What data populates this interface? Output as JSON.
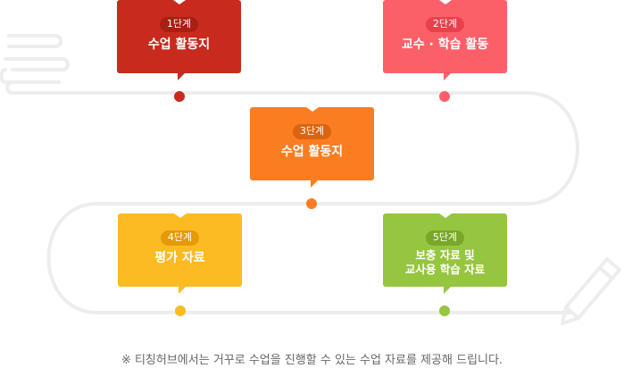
{
  "colors": {
    "track": "#ededed",
    "stage_1": "#c82a1d",
    "stage_1_badge": "#a81f14",
    "stage_2": "#fb6068",
    "stage_2_badge": "#e8414b",
    "stage_3": "#fb7d22",
    "stage_3_badge": "#db6410",
    "stage_4": "#fcbb22",
    "stage_4_badge": "#e59a0a",
    "stage_5": "#96c53f",
    "stage_5_badge": "#78a82a",
    "footnote": "#666666"
  },
  "stages": [
    {
      "badge": "1단계",
      "title": "수업 활동지"
    },
    {
      "badge": "2단계",
      "title": "교수 · 학습 활동"
    },
    {
      "badge": "3단계",
      "title": "수업 활동지"
    },
    {
      "badge": "4단계",
      "title": "평가 자료"
    },
    {
      "badge": "5단계",
      "title": "보충 자료 및\n교사용 학습 자료"
    }
  ],
  "icons": {
    "start": "scroll-paper-icon",
    "end": "pencil-icon"
  },
  "footnote": "※ 티칭허브에서는 거꾸로 수업을 진행할 수 있는 수업 자료를 제공해 드립니다."
}
